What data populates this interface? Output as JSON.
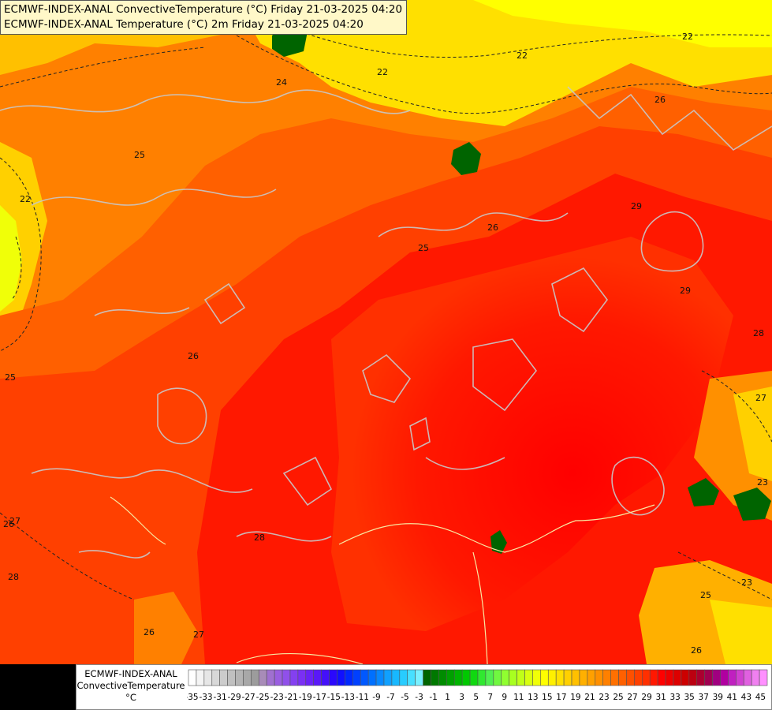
{
  "title": {
    "line1": "ECMWF-INDEX-ANAL ConvectiveTemperature (°C) Friday 21-03-2025 04:20",
    "line2": "ECMWF-INDEX-ANAL Temperature (°C) 2m Friday 21-03-2025 04:20"
  },
  "legend": {
    "model": "ECMWF-INDEX-ANAL",
    "parameter": "ConvectiveTemperature",
    "unit": "°C",
    "tick_labels": [
      "-35",
      "-33",
      "-31",
      "-29",
      "-27",
      "-25",
      "-23",
      "-21",
      "-19",
      "-17",
      "-15",
      "-13",
      "-11",
      "-9",
      "-7",
      "-5",
      "-3",
      "-1",
      "1",
      "3",
      "5",
      "7",
      "9",
      "11",
      "13",
      "15",
      "17",
      "19",
      "21",
      "23",
      "25",
      "27",
      "29",
      "31",
      "33",
      "35",
      "37",
      "39",
      "41",
      "43",
      "45"
    ],
    "colors": [
      "#ffffff",
      "#f4f4f4",
      "#e6e6e6",
      "#d8d8d8",
      "#cccccc",
      "#c0c0c0",
      "#b4b4b4",
      "#a8a8a8",
      "#9c9c9c",
      "#a88cb8",
      "#a070d0",
      "#9a5ee0",
      "#9050ea",
      "#8440f0",
      "#7a30f4",
      "#6a22f6",
      "#5a18f8",
      "#4410fa",
      "#2a08fc",
      "#1010ff",
      "#0028ff",
      "#0040ff",
      "#0058ff",
      "#0070ff",
      "#0888ff",
      "#10a0ff",
      "#18b8ff",
      "#28ccff",
      "#48e0ff",
      "#7af0ff",
      "#006400",
      "#007800",
      "#008c00",
      "#00a000",
      "#00b400",
      "#00c800",
      "#10d810",
      "#30e830",
      "#50f050",
      "#70f840",
      "#90ff30",
      "#a8ff20",
      "#c0ff18",
      "#d8ff10",
      "#f0ff08",
      "#ffff00",
      "#fff000",
      "#ffe000",
      "#ffd000",
      "#ffc000",
      "#ffb000",
      "#ffa000",
      "#ff9000",
      "#ff8000",
      "#ff7000",
      "#ff6000",
      "#ff5000",
      "#ff4000",
      "#ff3000",
      "#ff1800",
      "#ff0000",
      "#ee0000",
      "#dd0000",
      "#cc0000",
      "#bb0010",
      "#aa0030",
      "#a00050",
      "#a00080",
      "#b000a0",
      "#c020c0",
      "#d040d0",
      "#e060e0",
      "#f080f0",
      "#ff90ff"
    ]
  },
  "contour_labels": [
    "22",
    "24",
    "22",
    "22",
    "25",
    "22",
    "25",
    "26",
    "26",
    "29",
    "29",
    "28",
    "25",
    "26",
    "27",
    "28",
    "27",
    "28",
    "26",
    "26",
    "27",
    "23",
    "25",
    "26",
    "23"
  ]
}
